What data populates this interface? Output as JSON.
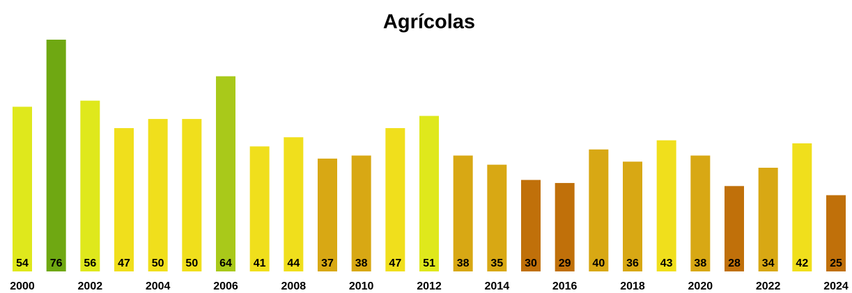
{
  "chart_data": {
    "type": "bar",
    "title": "Agrícolas",
    "categories": [
      "2000",
      null,
      "2002",
      null,
      "2004",
      null,
      "2006",
      null,
      "2008",
      null,
      "2010",
      null,
      "2012",
      null,
      "2014",
      null,
      "2016",
      null,
      "2018",
      null,
      "2020",
      null,
      "2022",
      null,
      "2024"
    ],
    "values": [
      54,
      76,
      56,
      47,
      50,
      50,
      64,
      41,
      44,
      37,
      38,
      47,
      51,
      38,
      35,
      30,
      29,
      40,
      36,
      43,
      38,
      28,
      34,
      42,
      25
    ],
    "colors": [
      "#dfe81c",
      "#6fa812",
      "#dfe81c",
      "#f0df1c",
      "#f0df1c",
      "#f0df1c",
      "#a9c91a",
      "#f0df1c",
      "#f0df1c",
      "#d8a814",
      "#d8a814",
      "#f0df1c",
      "#dfe81c",
      "#d8a814",
      "#d8a814",
      "#c0700a",
      "#c0700a",
      "#d8a814",
      "#d8a814",
      "#f0df1c",
      "#d8a814",
      "#c0700a",
      "#d8a814",
      "#f0df1c",
      "#c0700a"
    ]
  }
}
